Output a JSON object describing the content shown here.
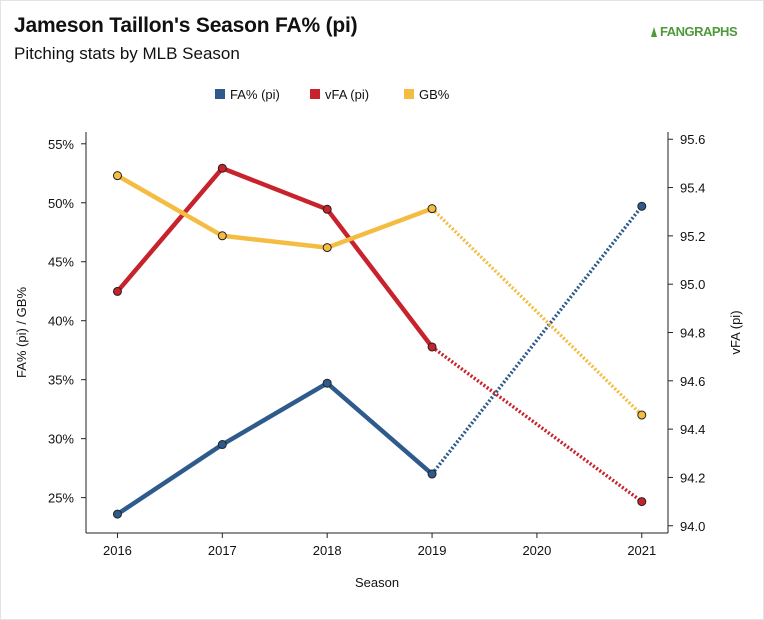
{
  "header": {
    "title": "Jameson Taillon's Season FA% (pi)",
    "subtitle": "Pitching stats by MLB Season",
    "logo_text": "FANGRAPHS"
  },
  "chart_data": {
    "type": "line",
    "x": [
      2016,
      2017,
      2018,
      2019,
      2020,
      2021
    ],
    "xlabel": "Season",
    "ylabel_left": "FA% (pi) / GB%",
    "ylabel_right": "vFA (pi)",
    "y_left_ticks": [
      "25%",
      "30%",
      "35%",
      "40%",
      "45%",
      "50%",
      "55%"
    ],
    "y_left_range": [
      22,
      56
    ],
    "y_right_ticks": [
      "94.0",
      "94.2",
      "94.4",
      "94.6",
      "94.8",
      "95.0",
      "95.2",
      "95.4",
      "95.6"
    ],
    "y_right_range": [
      93.97,
      95.63
    ],
    "legend_position": "top-center",
    "grid": false,
    "series": [
      {
        "name": "FA% (pi)",
        "axis": "left",
        "color": "#2e5b8b",
        "points": [
          [
            2016,
            23.6
          ],
          [
            2017,
            29.5
          ],
          [
            2018,
            34.7
          ],
          [
            2019,
            27.0
          ],
          [
            2021,
            49.7
          ]
        ]
      },
      {
        "name": "vFA (pi)",
        "axis": "right",
        "color": "#c8232c",
        "points": [
          [
            2016,
            94.97
          ],
          [
            2017,
            95.48
          ],
          [
            2018,
            95.31
          ],
          [
            2019,
            94.74
          ],
          [
            2021,
            94.1
          ]
        ]
      },
      {
        "name": "GB%",
        "axis": "left",
        "color": "#f5bc42",
        "points": [
          [
            2016,
            52.3
          ],
          [
            2017,
            47.2
          ],
          [
            2018,
            46.2
          ],
          [
            2019,
            49.5
          ],
          [
            2021,
            32.0
          ]
        ]
      }
    ]
  }
}
